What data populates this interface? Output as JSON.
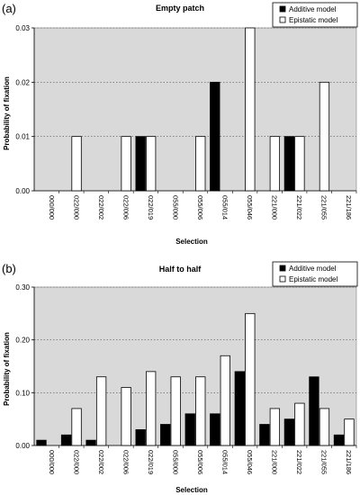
{
  "panels": [
    {
      "label": "(a)",
      "chart_data": {
        "type": "bar",
        "title": "Empty patch",
        "xlabel": "Selection",
        "ylabel": "Probability of fixation",
        "categories": [
          "000/000",
          "022/000",
          "022/002",
          "022/006",
          "022/019",
          "055/000",
          "055/006",
          "055/014",
          "055/046",
          "221/000",
          "221/022",
          "221/055",
          "221/186"
        ],
        "ylim": [
          0,
          0.03
        ],
        "yticks": [
          "0.00",
          "0.01",
          "0.02",
          "0.03"
        ],
        "ytick_values": [
          0,
          0.01,
          0.02,
          0.03
        ],
        "grid": "horizontal dotted",
        "legend_position": "top-right",
        "series": [
          {
            "name": "Additive model",
            "color": "#000000",
            "values": [
              0,
              0,
              0,
              0,
              0.01,
              0,
              0,
              0.02,
              0,
              0,
              0.01,
              0,
              0
            ]
          },
          {
            "name": "Epistatic model",
            "color": "#ffffff",
            "values": [
              0,
              0.01,
              0,
              0.01,
              0.01,
              0,
              0.01,
              0,
              0.03,
              0.01,
              0.01,
              0.02,
              0
            ]
          }
        ]
      }
    },
    {
      "label": "(b)",
      "chart_data": {
        "type": "bar",
        "title": "Half to half",
        "xlabel": "Selection",
        "ylabel": "Probability of fixation",
        "categories": [
          "000/000",
          "022/000",
          "022/002",
          "022/006",
          "022/019",
          "055/000",
          "055/006",
          "055/014",
          "055/046",
          "221/000",
          "221/022",
          "221/055",
          "221/186"
        ],
        "ylim": [
          0,
          0.3
        ],
        "yticks": [
          "0.00",
          "0.10",
          "0.20",
          "0.30"
        ],
        "ytick_values": [
          0,
          0.1,
          0.2,
          0.3
        ],
        "grid": "horizontal dotted",
        "legend_position": "top-right",
        "series": [
          {
            "name": "Additive model",
            "color": "#000000",
            "values": [
              0.01,
              0.02,
              0.01,
              0,
              0.03,
              0.04,
              0.06,
              0.06,
              0.14,
              0.04,
              0.05,
              0.13,
              0.02
            ]
          },
          {
            "name": "Epistatic model",
            "color": "#ffffff",
            "values": [
              0,
              0.07,
              0.13,
              0.11,
              0.14,
              0.13,
              0.13,
              0.17,
              0.25,
              0.07,
              0.08,
              0.07,
              0.05
            ]
          }
        ]
      }
    }
  ]
}
